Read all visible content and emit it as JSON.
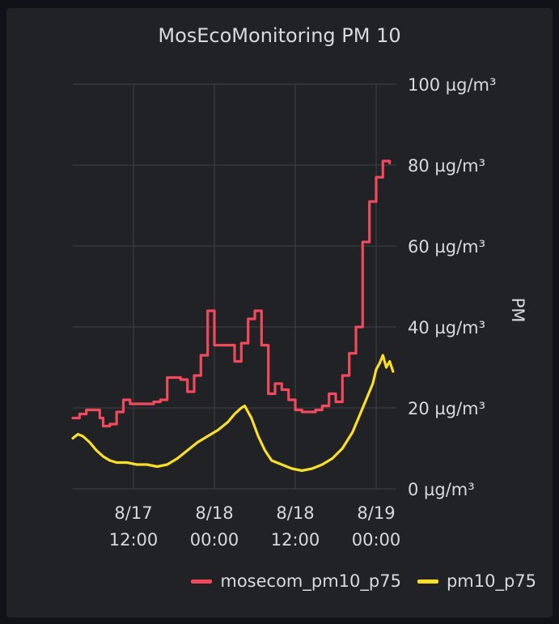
{
  "panel": {
    "title": "MosEcoMonitoring PM 10"
  },
  "chart_data": {
    "type": "line",
    "title": "MosEcoMonitoring PM 10",
    "xlabel": "",
    "ylabel": "PM",
    "y_unit": "µg/m³",
    "ylim": [
      0,
      100
    ],
    "y_ticks": [
      0,
      20,
      40,
      60,
      80,
      100
    ],
    "y_tick_labels": [
      "0 µg/m³",
      "20 µg/m³",
      "40 µg/m³",
      "60 µg/m³",
      "80 µg/m³",
      "100 µg/m³"
    ],
    "x_ticks": [
      {
        "x": "2024-08-17 12:00",
        "line1": "8/17",
        "line2": "12:00"
      },
      {
        "x": "2024-08-18 00:00",
        "line1": "8/18",
        "line2": "00:00"
      },
      {
        "x": "2024-08-18 12:00",
        "line1": "8/18",
        "line2": "12:00"
      },
      {
        "x": "2024-08-19 00:00",
        "line1": "8/19",
        "line2": "00:00"
      }
    ],
    "xlim": [
      "2024-08-17 03:00",
      "2024-08-19 03:00"
    ],
    "grid": true,
    "y_axis_side": "right",
    "legend_position": "bottom-right",
    "series": [
      {
        "name": "mosecom_pm10_p75",
        "color": "#f2495c",
        "style": "step",
        "points": [
          [
            "2024-08-17 03:00",
            17.5
          ],
          [
            "2024-08-17 04:00",
            18.5
          ],
          [
            "2024-08-17 05:00",
            19.5
          ],
          [
            "2024-08-17 07:00",
            17.5
          ],
          [
            "2024-08-17 07:30",
            15.5
          ],
          [
            "2024-08-17 08:30",
            16.0
          ],
          [
            "2024-08-17 09:30",
            19.0
          ],
          [
            "2024-08-17 10:30",
            22.0
          ],
          [
            "2024-08-17 11:30",
            21.0
          ],
          [
            "2024-08-17 15:00",
            21.5
          ],
          [
            "2024-08-17 16:00",
            22.0
          ],
          [
            "2024-08-17 17:00",
            27.5
          ],
          [
            "2024-08-17 19:00",
            27.0
          ],
          [
            "2024-08-17 20:00",
            24.0
          ],
          [
            "2024-08-17 21:00",
            28.0
          ],
          [
            "2024-08-17 22:00",
            33.0
          ],
          [
            "2024-08-17 23:00",
            44.0
          ],
          [
            "2024-08-18 00:00",
            35.5
          ],
          [
            "2024-08-18 02:00",
            35.5
          ],
          [
            "2024-08-18 03:00",
            31.5
          ],
          [
            "2024-08-18 04:00",
            36.0
          ],
          [
            "2024-08-18 05:00",
            42.0
          ],
          [
            "2024-08-18 06:00",
            44.0
          ],
          [
            "2024-08-18 07:00",
            35.5
          ],
          [
            "2024-08-18 08:00",
            23.5
          ],
          [
            "2024-08-18 09:00",
            26.0
          ],
          [
            "2024-08-18 10:00",
            24.5
          ],
          [
            "2024-08-18 11:00",
            22.0
          ],
          [
            "2024-08-18 12:00",
            19.5
          ],
          [
            "2024-08-18 13:00",
            19.0
          ],
          [
            "2024-08-18 15:00",
            19.5
          ],
          [
            "2024-08-18 16:00",
            20.5
          ],
          [
            "2024-08-18 17:00",
            23.5
          ],
          [
            "2024-08-18 18:00",
            21.5
          ],
          [
            "2024-08-18 19:00",
            28.0
          ],
          [
            "2024-08-18 20:00",
            33.5
          ],
          [
            "2024-08-18 21:00",
            40.0
          ],
          [
            "2024-08-18 22:00",
            61.0
          ],
          [
            "2024-08-18 23:00",
            71.0
          ],
          [
            "2024-08-19 00:00",
            77.0
          ],
          [
            "2024-08-19 01:00",
            81.0
          ],
          [
            "2024-08-19 02:00",
            80.5
          ]
        ]
      },
      {
        "name": "pm10_p75",
        "color": "#fade2a",
        "style": "line",
        "points": [
          [
            "2024-08-17 03:00",
            12.5
          ],
          [
            "2024-08-17 03:45",
            13.5
          ],
          [
            "2024-08-17 04:30",
            13.0
          ],
          [
            "2024-08-17 05:30",
            11.5
          ],
          [
            "2024-08-17 06:30",
            9.5
          ],
          [
            "2024-08-17 07:30",
            8.0
          ],
          [
            "2024-08-17 08:30",
            7.0
          ],
          [
            "2024-08-17 09:30",
            6.5
          ],
          [
            "2024-08-17 11:00",
            6.5
          ],
          [
            "2024-08-17 12:30",
            6.0
          ],
          [
            "2024-08-17 14:00",
            6.0
          ],
          [
            "2024-08-17 15:30",
            5.5
          ],
          [
            "2024-08-17 17:00",
            6.0
          ],
          [
            "2024-08-17 18:30",
            7.5
          ],
          [
            "2024-08-17 20:00",
            9.5
          ],
          [
            "2024-08-17 21:30",
            11.5
          ],
          [
            "2024-08-17 23:00",
            13.0
          ],
          [
            "2024-08-18 00:30",
            14.5
          ],
          [
            "2024-08-18 02:00",
            16.5
          ],
          [
            "2024-08-18 03:00",
            18.5
          ],
          [
            "2024-08-18 04:00",
            20.0
          ],
          [
            "2024-08-18 04:30",
            20.5
          ],
          [
            "2024-08-18 05:30",
            17.5
          ],
          [
            "2024-08-18 06:30",
            13.0
          ],
          [
            "2024-08-18 07:30",
            9.5
          ],
          [
            "2024-08-18 08:30",
            7.0
          ],
          [
            "2024-08-18 10:00",
            6.0
          ],
          [
            "2024-08-18 11:30",
            5.0
          ],
          [
            "2024-08-18 13:00",
            4.5
          ],
          [
            "2024-08-18 14:30",
            5.0
          ],
          [
            "2024-08-18 16:00",
            6.0
          ],
          [
            "2024-08-18 17:30",
            7.5
          ],
          [
            "2024-08-18 19:00",
            10.0
          ],
          [
            "2024-08-18 20:30",
            14.0
          ],
          [
            "2024-08-18 21:30",
            18.0
          ],
          [
            "2024-08-18 22:30",
            22.0
          ],
          [
            "2024-08-18 23:30",
            26.0
          ],
          [
            "2024-08-19 00:00",
            29.5
          ],
          [
            "2024-08-19 00:30",
            31.0
          ],
          [
            "2024-08-19 01:00",
            33.0
          ],
          [
            "2024-08-19 01:30",
            30.0
          ],
          [
            "2024-08-19 02:00",
            31.5
          ],
          [
            "2024-08-19 02:30",
            29.0
          ]
        ]
      }
    ]
  }
}
